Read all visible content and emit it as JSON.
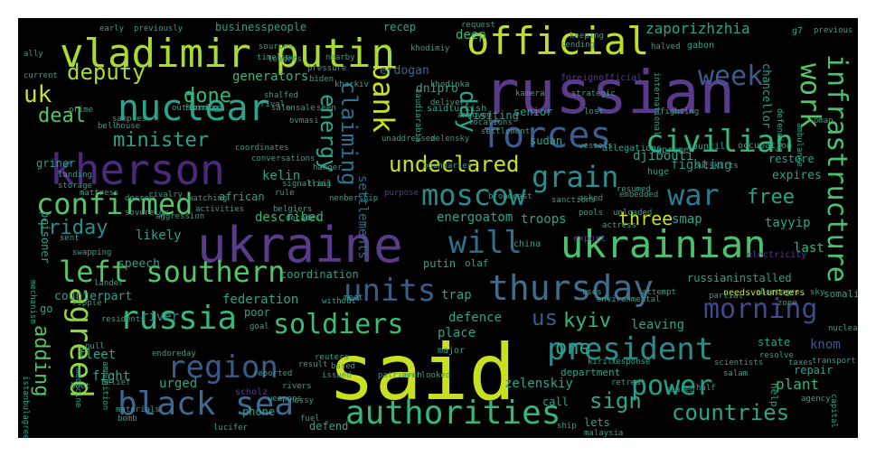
{
  "colors": {
    "background": "#000000",
    "page": "#ffffff",
    "yellow": "#c8e020",
    "green": "#4ac26d",
    "teal": "#2aa48c",
    "blue": "#3b6a92",
    "purple": "#5a3a8a",
    "cyan": "#1fa188"
  },
  "words": [
    {
      "text": "said",
      "color": "#c8e020"
    },
    {
      "text": "russian",
      "color": "#5a3a8a"
    },
    {
      "text": "ukraine",
      "color": "#5a3a8a"
    },
    {
      "text": "ukrainian",
      "color": "#4ac26d"
    },
    {
      "text": "vladimir putin",
      "color": "#a8db34"
    },
    {
      "text": "kherson",
      "color": "#4b2a7d"
    },
    {
      "text": "official",
      "color": "#bddf26"
    },
    {
      "text": "forces",
      "color": "#3e5b8c"
    },
    {
      "text": "nuclear",
      "color": "#2aa48c"
    },
    {
      "text": "civilian",
      "color": "#35b779"
    },
    {
      "text": "black sea",
      "color": "#3b6a92"
    },
    {
      "text": "russia",
      "color": "#35b779"
    },
    {
      "text": "thursday",
      "color": "#3e6d8d"
    },
    {
      "text": "region",
      "color": "#3b5a8a"
    },
    {
      "text": "president",
      "color": "#2c8b8a"
    },
    {
      "text": "authorities",
      "color": "#35b779"
    },
    {
      "text": "confirmed",
      "color": "#54c567"
    },
    {
      "text": "left southern",
      "color": "#54c567"
    },
    {
      "text": "units",
      "color": "#3a5c8b"
    },
    {
      "text": "soldiers",
      "color": "#3bbb75"
    },
    {
      "text": "moscow",
      "color": "#2c8b8a"
    },
    {
      "text": "power",
      "color": "#1fa188"
    },
    {
      "text": "grain",
      "color": "#2a8e8c"
    },
    {
      "text": "war",
      "color": "#2a7b8e"
    },
    {
      "text": "week",
      "color": "#3e5a89"
    },
    {
      "text": "bank",
      "color": "#c8e020"
    },
    {
      "text": "infrastructure",
      "color": "#4ac26d"
    },
    {
      "text": "work",
      "color": "#54c567"
    },
    {
      "text": "agreed",
      "color": "#8fd744"
    },
    {
      "text": "will",
      "color": "#2d6f8e"
    },
    {
      "text": "morning",
      "color": "#3e4a89"
    },
    {
      "text": "countries",
      "color": "#2aa48c"
    },
    {
      "text": "energy",
      "color": "#2aa48c"
    },
    {
      "text": "claiming",
      "color": "#2d6f8e"
    },
    {
      "text": "day",
      "color": "#2aa48c"
    },
    {
      "text": "undeclared",
      "color": "#c8e020"
    },
    {
      "text": "deputy",
      "color": "#a8db34"
    },
    {
      "text": "done",
      "color": "#35b779"
    },
    {
      "text": "minister",
      "color": "#2aa48c"
    },
    {
      "text": "deal",
      "color": "#54c567"
    },
    {
      "text": "friday",
      "color": "#2a8e8c"
    },
    {
      "text": "uk",
      "color": "#c8e020"
    },
    {
      "text": "free",
      "color": "#2aa48c"
    },
    {
      "text": "three",
      "color": "#c8e020"
    },
    {
      "text": "kyiv",
      "color": "#35b779"
    },
    {
      "text": "us",
      "color": "#3b5a8a"
    },
    {
      "text": "sign",
      "color": "#2aa48c"
    },
    {
      "text": "one",
      "color": "#2aa48c"
    },
    {
      "text": "adding",
      "color": "#54c567"
    },
    {
      "text": "fighting",
      "color": "#2a8e8c"
    },
    {
      "text": "zaporizhzhia",
      "color": "#2aa48c"
    },
    {
      "text": "djibouti",
      "color": "#2aa48c"
    },
    {
      "text": "erdogan",
      "color": "#2d6f8e"
    },
    {
      "text": "dnipro",
      "color": "#2aa48c"
    },
    {
      "text": "deep",
      "color": "#35b779"
    },
    {
      "text": "generators",
      "color": "#35b779"
    },
    {
      "text": "energoatom",
      "color": "#2aa48c"
    },
    {
      "text": "troops",
      "color": "#2aa48c"
    },
    {
      "text": "settlements",
      "color": "#2d6f8e"
    },
    {
      "text": "described",
      "color": "#35b779"
    },
    {
      "text": "likely",
      "color": "#2aa48c"
    },
    {
      "text": "federation",
      "color": "#2aa48c"
    },
    {
      "text": "river",
      "color": "#2a8e8c"
    },
    {
      "text": "counterpart",
      "color": "#2aa48c"
    },
    {
      "text": "place",
      "color": "#2aa48c"
    },
    {
      "text": "defence",
      "color": "#2aa48c"
    },
    {
      "text": "leaving",
      "color": "#2aa48c"
    },
    {
      "text": "plant",
      "color": "#35b779"
    },
    {
      "text": "last",
      "color": "#35b779"
    },
    {
      "text": "knom",
      "color": "#3b5a8a"
    },
    {
      "text": "zelenskiy",
      "color": "#2aa48c"
    },
    {
      "text": "fleet",
      "color": "#2aa48c"
    },
    {
      "text": "fight",
      "color": "#2aa48c"
    },
    {
      "text": "urged",
      "color": "#2aa48c"
    },
    {
      "text": "repair",
      "color": "#2aa48c"
    },
    {
      "text": "trap",
      "color": "#2aa48c"
    },
    {
      "text": "coordination",
      "color": "#2aa48c"
    },
    {
      "text": "smap",
      "color": "#2aa48c"
    },
    {
      "text": "tayyip",
      "color": "#2aa48c"
    },
    {
      "text": "expires",
      "color": "#2aa48c"
    },
    {
      "text": "restore",
      "color": "#2aa48c"
    },
    {
      "text": "kelin",
      "color": "#2aa48c"
    },
    {
      "text": "griner",
      "color": "#2aa48c"
    },
    {
      "text": "prisoner",
      "color": "#2aa48c"
    },
    {
      "text": "businesspeople",
      "color": "#2aa48c"
    },
    {
      "text": "recep",
      "color": "#2aa48c"
    },
    {
      "text": "somalia",
      "color": "#2aa48c"
    },
    {
      "text": "russianinstalled",
      "color": "#2aa48c"
    },
    {
      "text": "defend",
      "color": "#2aa48c"
    },
    {
      "text": "call",
      "color": "#2aa48c"
    },
    {
      "text": "lets",
      "color": "#2aa48c"
    },
    {
      "text": "phone",
      "color": "#2aa48c"
    },
    {
      "text": "speech",
      "color": "#2aa48c"
    },
    {
      "text": "african",
      "color": "#2aa48c"
    },
    {
      "text": "poor",
      "color": "#2aa48c"
    },
    {
      "text": "state",
      "color": "#2aa48c"
    },
    {
      "text": "putin",
      "color": "#2aa48c"
    },
    {
      "text": "olaf",
      "color": "#2aa48c"
    },
    {
      "text": "g7",
      "color": "#2aa48c"
    },
    {
      "text": "senior",
      "color": "#2aa48c"
    },
    {
      "text": "chancellor",
      "color": "#2aa48c"
    },
    {
      "text": "sudan",
      "color": "#2aa48c"
    },
    {
      "text": "go",
      "color": "#2aa48c"
    },
    {
      "text": "department",
      "color": "#2aa48c"
    },
    {
      "text": "help",
      "color": "#2aa48c"
    },
    {
      "text": "electricity",
      "color": "#5a3a8a"
    },
    {
      "text": "scholz",
      "color": "#5a3a8a"
    },
    {
      "text": "export",
      "color": "#5a3a8a"
    },
    {
      "text": "visiting",
      "color": "#2aa48c"
    },
    {
      "text": "allegations",
      "color": "#2aa48c"
    },
    {
      "text": "supreme",
      "color": "#2aa48c"
    },
    {
      "text": "council",
      "color": "#2aa48c"
    },
    {
      "text": "occupation",
      "color": "#2aa48c"
    },
    {
      "text": "huge",
      "color": "#2aa48c"
    },
    {
      "text": "china",
      "color": "#2aa48c"
    },
    {
      "text": "major",
      "color": "#2aa48c"
    },
    {
      "text": "ally",
      "color": "#2aa48c"
    },
    {
      "text": "current",
      "color": "#2aa48c"
    },
    {
      "text": "gabon",
      "color": "#2aa48c"
    },
    {
      "text": "early",
      "color": "#2aa48c"
    },
    {
      "text": "previously",
      "color": "#2aa48c"
    },
    {
      "text": "request",
      "color": "#2aa48c"
    },
    {
      "text": "previous",
      "color": "#2aa48c"
    },
    {
      "text": "keeping",
      "color": "#2aa48c"
    },
    {
      "text": "forming",
      "color": "#2aa48c"
    },
    {
      "text": "sources",
      "color": "#2aa48c"
    },
    {
      "text": "timeline",
      "color": "#2aa48c"
    },
    {
      "text": "khodimiy",
      "color": "#2aa48c"
    },
    {
      "text": "sending",
      "color": "#2aa48c"
    },
    {
      "text": "halved",
      "color": "#2aa48c"
    },
    {
      "text": "saudiarabia",
      "color": "#2aa48c"
    },
    {
      "text": "nearby",
      "color": "#2aa48c"
    },
    {
      "text": "prime",
      "color": "#2aa48c"
    },
    {
      "text": "samples",
      "color": "#2aa48c"
    },
    {
      "text": "bell",
      "color": "#2aa48c"
    },
    {
      "text": "house",
      "color": "#2aa48c"
    },
    {
      "text": "delivery",
      "color": "#2aa48c"
    },
    {
      "text": "leaders",
      "color": "#2aa48c"
    },
    {
      "text": "pressure",
      "color": "#2aa48c"
    },
    {
      "text": "fighting",
      "color": "#2aa48c"
    },
    {
      "text": "istanbulagreement",
      "color": "#2aa48c"
    },
    {
      "text": "boot",
      "color": "#2aa48c"
    },
    {
      "text": "pull",
      "color": "#2aa48c"
    },
    {
      "text": "medicine",
      "color": "#2aa48c"
    },
    {
      "text": "materials",
      "color": "#2aa48c"
    },
    {
      "text": "ammunition",
      "color": "#2aa48c"
    },
    {
      "text": "reported",
      "color": "#2aa48c"
    },
    {
      "text": "nossy",
      "color": "#2aa48c"
    },
    {
      "text": "rivers",
      "color": "#2aa48c"
    },
    {
      "text": "weapons",
      "color": "#2aa48c"
    },
    {
      "text": "fuel",
      "color": "#2aa48c"
    },
    {
      "text": "reuters",
      "color": "#2aa48c"
    },
    {
      "text": "based",
      "color": "#2aa48c"
    },
    {
      "text": "salam",
      "color": "#2aa48c"
    },
    {
      "text": "resolve",
      "color": "#2aa48c"
    },
    {
      "text": "issued",
      "color": "#2aa48c"
    },
    {
      "text": "kirill",
      "color": "#2aa48c"
    },
    {
      "text": "response",
      "color": "#2aa48c"
    },
    {
      "text": "patriarch",
      "color": "#2aa48c"
    },
    {
      "text": "overlooked",
      "color": "#2aa48c"
    },
    {
      "text": "retreat",
      "color": "#2aa48c"
    },
    {
      "text": "soared",
      "color": "#2aa48c"
    },
    {
      "text": "half",
      "color": "#2aa48c"
    },
    {
      "text": "agency",
      "color": "#2aa48c"
    },
    {
      "text": "capital",
      "color": "#2aa48c"
    },
    {
      "text": "transport",
      "color": "#2aa48c"
    },
    {
      "text": "taxes",
      "color": "#2aa48c"
    },
    {
      "text": "ship",
      "color": "#2aa48c"
    },
    {
      "text": "malaysia",
      "color": "#2aa48c"
    },
    {
      "text": "lucifer",
      "color": "#2aa48c"
    },
    {
      "text": "bomb",
      "color": "#2aa48c"
    },
    {
      "text": "residents",
      "color": "#2aa48c"
    },
    {
      "text": "mechanism",
      "color": "#2aa48c"
    },
    {
      "text": "environmental",
      "color": "#2aa48c"
    },
    {
      "text": "uses",
      "color": "#2aa48c"
    },
    {
      "text": "result",
      "color": "#2aa48c"
    },
    {
      "text": "scientists",
      "color": "#2aa48c"
    },
    {
      "text": "goal",
      "color": "#2aa48c"
    },
    {
      "text": "without",
      "color": "#2aa48c"
    },
    {
      "text": "meet",
      "color": "#2aa48c"
    },
    {
      "text": "unloaded",
      "color": "#2aa48c"
    },
    {
      "text": "pools",
      "color": "#2aa48c"
    },
    {
      "text": "actress",
      "color": "#2aa48c"
    },
    {
      "text": "activities",
      "color": "#2aa48c"
    },
    {
      "text": "watching",
      "color": "#2aa48c"
    },
    {
      "text": "decree",
      "color": "#2aa48c"
    },
    {
      "text": "rule",
      "color": "#2aa48c"
    },
    {
      "text": "decades",
      "color": "#2aa48c"
    },
    {
      "text": "signalling",
      "color": "#2aa48c"
    },
    {
      "text": "international",
      "color": "#2aa48c"
    },
    {
      "text": "shortages",
      "color": "#2aa48c"
    },
    {
      "text": "needsvolunteers",
      "color": "#c8e020"
    },
    {
      "text": "nuclearpower",
      "color": "#2aa48c"
    },
    {
      "text": "outskirts",
      "color": "#2aa48c"
    },
    {
      "text": "defending",
      "color": "#2aa48c"
    },
    {
      "text": "ambulance",
      "color": "#2aa48c"
    },
    {
      "text": "sky",
      "color": "#2aa48c"
    },
    {
      "text": "zone",
      "color": "#2aa48c"
    },
    {
      "text": "partial",
      "color": "#2aa48c"
    },
    {
      "text": "attempt",
      "color": "#2aa48c"
    },
    {
      "text": "sent",
      "color": "#2aa48c"
    },
    {
      "text": "swapping",
      "color": "#2aa48c"
    },
    {
      "text": "mattress",
      "color": "#2aa48c"
    },
    {
      "text": "sovereign",
      "color": "#2aa48c"
    },
    {
      "text": "rivalry",
      "color": "#2aa48c"
    },
    {
      "text": "aggression",
      "color": "#2aa48c"
    },
    {
      "text": "purpose",
      "color": "#5a3a8a"
    },
    {
      "text": "embedded",
      "color": "#2aa48c"
    },
    {
      "text": "conversations",
      "color": "#2aa48c"
    },
    {
      "text": "coordinates",
      "color": "#2aa48c"
    },
    {
      "text": "outskirt",
      "color": "#2aa48c"
    },
    {
      "text": "forming",
      "color": "#2aa48c"
    },
    {
      "text": "kharkiv",
      "color": "#2aa48c"
    },
    {
      "text": "biden",
      "color": "#2aa48c"
    },
    {
      "text": "annoyed",
      "color": "#2aa48c"
    },
    {
      "text": "boundaries",
      "color": "#2aa48c"
    },
    {
      "text": "vessels",
      "color": "#2aa48c"
    },
    {
      "text": "lost",
      "color": "#2aa48c"
    },
    {
      "text": "zelensky",
      "color": "#2aa48c"
    },
    {
      "text": "unaddressed",
      "color": "#2aa48c"
    },
    {
      "text": "asked",
      "color": "#2aa48c"
    },
    {
      "text": "resumed",
      "color": "#2aa48c"
    },
    {
      "text": "belief",
      "color": "#2aa48c"
    },
    {
      "text": "ripple",
      "color": "#2aa48c"
    },
    {
      "text": "lander",
      "color": "#2aa48c"
    },
    {
      "text": "landing",
      "color": "#2aa48c"
    },
    {
      "text": "storage",
      "color": "#2aa48c"
    },
    {
      "text": "broadcast",
      "color": "#2aa48c"
    },
    {
      "text": "sanctions",
      "color": "#2aa48c"
    },
    {
      "text": "nenbership",
      "color": "#2aa48c"
    },
    {
      "text": "endoreday",
      "color": "#2aa48c"
    },
    {
      "text": "belgiers",
      "color": "#2aa48c"
    },
    {
      "text": "khodinka",
      "color": "#2aa48c"
    },
    {
      "text": "shalfed",
      "color": "#2aa48c"
    },
    {
      "text": "hanger",
      "color": "#2aa48c"
    },
    {
      "text": "trail",
      "color": "#2aa48c"
    },
    {
      "text": "rival",
      "color": "#2aa48c"
    },
    {
      "text": "sale",
      "color": "#2aa48c"
    },
    {
      "text": "onsale",
      "color": "#2aa48c"
    },
    {
      "text": "seen",
      "color": "#2aa48c"
    },
    {
      "text": "saidturkish",
      "color": "#2aa48c"
    },
    {
      "text": "foreignofficial",
      "color": "#5a3a8a"
    },
    {
      "text": "strategic",
      "color": "#2aa48c"
    },
    {
      "text": "kamera",
      "color": "#2aa48c"
    },
    {
      "text": "locations",
      "color": "#2aa48c"
    },
    {
      "text": "settlement",
      "color": "#2aa48c"
    },
    {
      "text": "ovmasi",
      "color": "#2aa48c"
    },
    {
      "text": "oman",
      "color": "#2aa48c"
    }
  ]
}
